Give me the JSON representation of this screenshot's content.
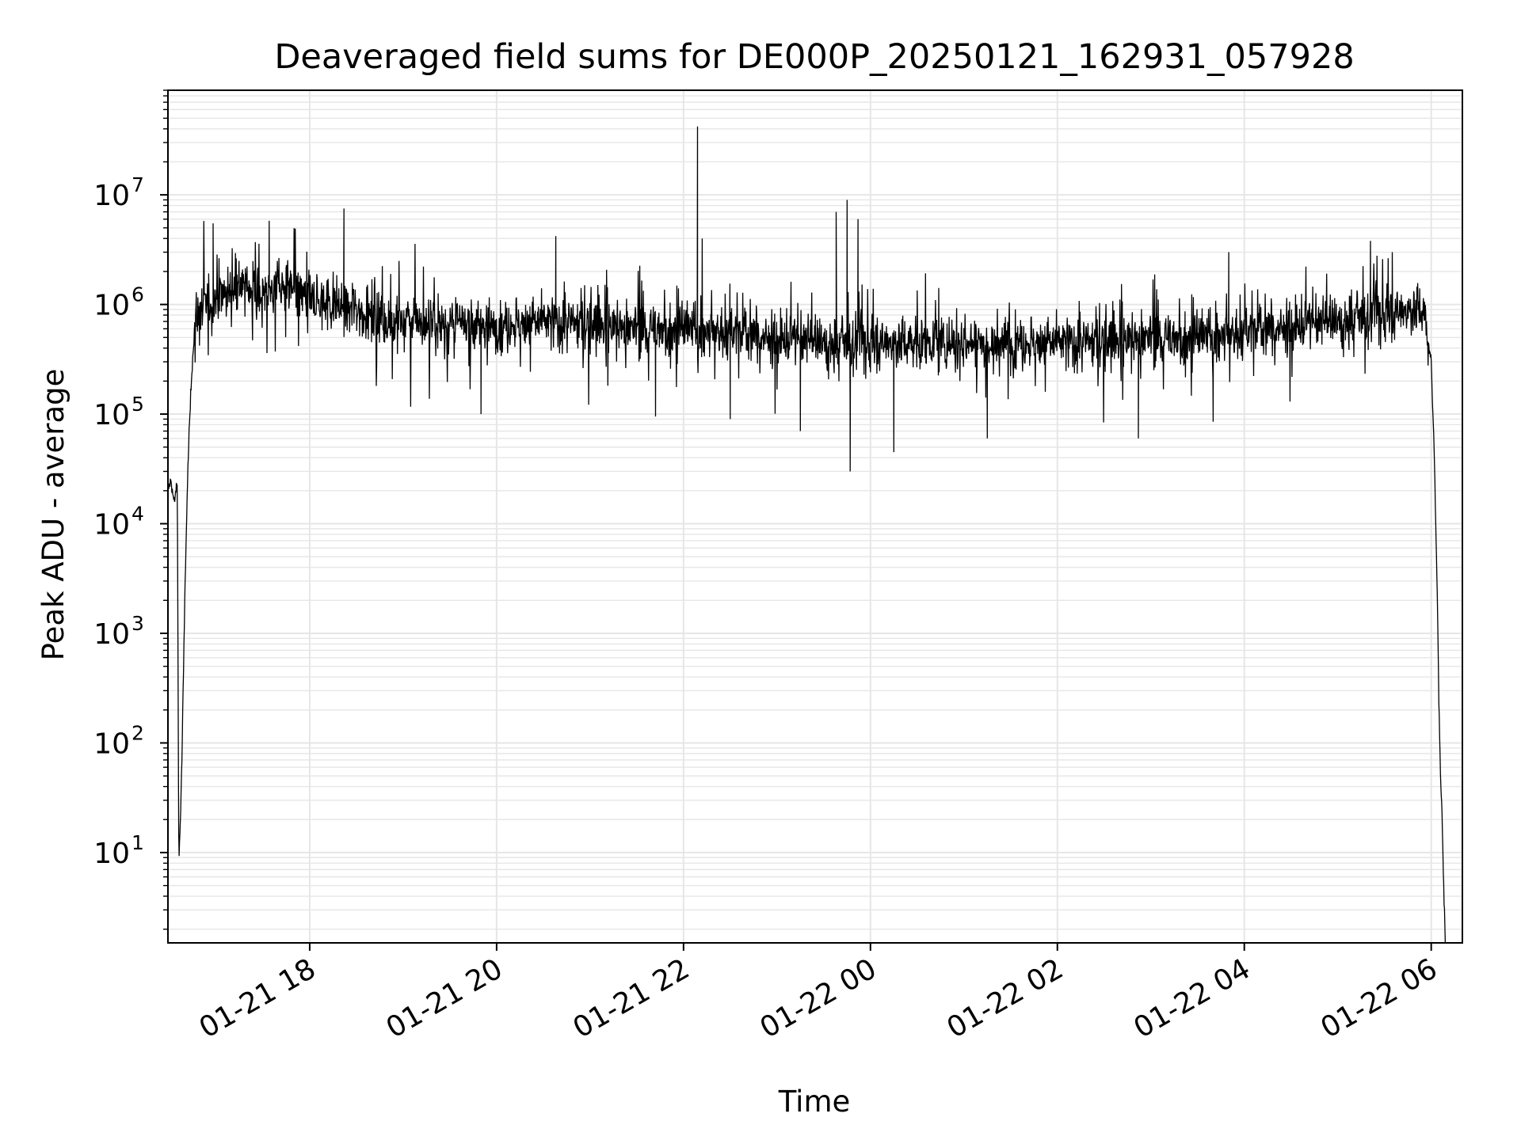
{
  "chart_data": {
    "type": "line",
    "title": "Deaveraged field sums for DE000P_20250121_162931_057928",
    "xlabel": "Time",
    "ylabel": "Peak ADU - average",
    "yscale": "log",
    "grid": true,
    "line_color": "#000000",
    "grid_color": "#e6e6e6",
    "xlim": [
      "2025-01-21 16:29",
      "2025-01-22 06:20"
    ],
    "ylim": [
      1.5,
      90000000
    ],
    "x_ticks": [
      {
        "t": "2025-01-21 18:00",
        "label": "01-21 18"
      },
      {
        "t": "2025-01-21 20:00",
        "label": "01-21 20"
      },
      {
        "t": "2025-01-21 22:00",
        "label": "01-21 22"
      },
      {
        "t": "2025-01-22 00:00",
        "label": "01-22 00"
      },
      {
        "t": "2025-01-22 02:00",
        "label": "01-22 02"
      },
      {
        "t": "2025-01-22 04:00",
        "label": "01-22 04"
      },
      {
        "t": "2025-01-22 06:00",
        "label": "01-22 06"
      }
    ],
    "y_ticks": [
      {
        "value": 10,
        "base": "10",
        "exp": "1"
      },
      {
        "value": 100,
        "base": "10",
        "exp": "2"
      },
      {
        "value": 1000,
        "base": "10",
        "exp": "3"
      },
      {
        "value": 10000,
        "base": "10",
        "exp": "4"
      },
      {
        "value": 100000,
        "base": "10",
        "exp": "5"
      },
      {
        "value": 1000000,
        "base": "10",
        "exp": "6"
      },
      {
        "value": 10000000,
        "base": "10",
        "exp": "7"
      }
    ],
    "series": [
      {
        "points": [
          [
            "2025-01-21 16:29",
            20000
          ],
          [
            "2025-01-21 16:31",
            25000
          ],
          [
            "2025-01-21 16:33",
            15000
          ],
          [
            "2025-01-21 16:35",
            25000
          ],
          [
            "2025-01-21 16:36",
            8
          ],
          [
            "2025-01-21 16:37",
            20
          ],
          [
            "2025-01-21 16:38",
            70
          ],
          [
            "2025-01-21 16:40",
            3000
          ],
          [
            "2025-01-21 16:42",
            40000
          ],
          [
            "2025-01-21 16:44",
            200000
          ],
          [
            "2025-01-21 16:46",
            600000
          ],
          [
            "2025-01-21 16:50",
            900000
          ],
          [
            "2025-01-21 17:00",
            1200000
          ],
          [
            "2025-01-21 17:15",
            1500000
          ],
          [
            "2025-01-21 17:30",
            1300000
          ],
          [
            "2025-01-21 17:45",
            1400000
          ],
          [
            "2025-01-21 18:00",
            1100000
          ],
          [
            "2025-01-21 18:15",
            1000000
          ],
          [
            "2025-01-21 18:30",
            900000
          ],
          [
            "2025-01-21 18:45",
            750000
          ],
          [
            "2025-01-21 19:00",
            700000
          ],
          [
            "2025-01-21 19:30",
            650000
          ],
          [
            "2025-01-21 20:00",
            650000
          ],
          [
            "2025-01-21 20:30",
            700000
          ],
          [
            "2025-01-21 21:00",
            650000
          ],
          [
            "2025-01-21 21:30",
            600000
          ],
          [
            "2025-01-21 22:00",
            600000
          ],
          [
            "2025-01-21 22:30",
            550000
          ],
          [
            "2025-01-21 23:00",
            500000
          ],
          [
            "2025-01-21 23:30",
            450000
          ],
          [
            "2025-01-22 00:00",
            450000
          ],
          [
            "2025-01-22 00:30",
            450000
          ],
          [
            "2025-01-22 01:00",
            450000
          ],
          [
            "2025-01-22 01:30",
            450000
          ],
          [
            "2025-01-22 02:00",
            450000
          ],
          [
            "2025-01-22 02:30",
            450000
          ],
          [
            "2025-01-22 03:00",
            500000
          ],
          [
            "2025-01-22 03:30",
            500000
          ],
          [
            "2025-01-22 04:00",
            550000
          ],
          [
            "2025-01-22 04:30",
            650000
          ],
          [
            "2025-01-22 05:00",
            700000
          ],
          [
            "2025-01-22 05:30",
            850000
          ],
          [
            "2025-01-22 05:55",
            900000
          ],
          [
            "2025-01-22 06:00",
            300000
          ],
          [
            "2025-01-22 06:02",
            40000
          ],
          [
            "2025-01-22 06:04",
            2000
          ],
          [
            "2025-01-22 06:05",
            200
          ],
          [
            "2025-01-22 06:06",
            50
          ],
          [
            "2025-01-22 06:07",
            20
          ],
          [
            "2025-01-22 06:08",
            5
          ],
          [
            "2025-01-22 06:09",
            1.5
          ]
        ],
        "spikes": [
          [
            "2025-01-21 16:58",
            5500000
          ],
          [
            "2025-01-21 17:34",
            5800000
          ],
          [
            "2025-01-21 18:22",
            7500000
          ],
          [
            "2025-01-21 20:38",
            4200000
          ],
          [
            "2025-01-21 22:09",
            42000000
          ],
          [
            "2025-01-21 22:12",
            4000000
          ],
          [
            "2025-01-21 23:38",
            7000000
          ],
          [
            "2025-01-21 23:45",
            9000000
          ],
          [
            "2025-01-21 23:52",
            6000000
          ],
          [
            "2025-01-22 03:50",
            3000000
          ],
          [
            "2025-01-22 05:21",
            3800000
          ],
          [
            "2025-01-22 05:35",
            3000000
          ]
        ],
        "dips": [
          [
            "2025-01-21 19:50",
            100000
          ],
          [
            "2025-01-21 21:42",
            95000
          ],
          [
            "2025-01-21 22:30",
            90000
          ],
          [
            "2025-01-21 23:15",
            70000
          ],
          [
            "2025-01-21 23:47",
            30000
          ],
          [
            "2025-01-22 00:15",
            45000
          ],
          [
            "2025-01-22 01:15",
            60000
          ],
          [
            "2025-01-22 02:52",
            60000
          ],
          [
            "2025-01-22 03:40",
            85000
          ]
        ]
      }
    ]
  }
}
